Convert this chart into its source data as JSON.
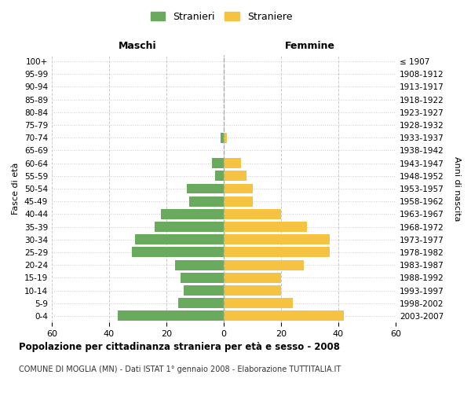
{
  "age_groups": [
    "0-4",
    "5-9",
    "10-14",
    "15-19",
    "20-24",
    "25-29",
    "30-34",
    "35-39",
    "40-44",
    "45-49",
    "50-54",
    "55-59",
    "60-64",
    "65-69",
    "70-74",
    "75-79",
    "80-84",
    "85-89",
    "90-94",
    "95-99",
    "100+"
  ],
  "birth_years": [
    "2003-2007",
    "1998-2002",
    "1993-1997",
    "1988-1992",
    "1983-1987",
    "1978-1982",
    "1973-1977",
    "1968-1972",
    "1963-1967",
    "1958-1962",
    "1953-1957",
    "1948-1952",
    "1943-1947",
    "1938-1942",
    "1933-1937",
    "1928-1932",
    "1923-1927",
    "1918-1922",
    "1913-1917",
    "1908-1912",
    "≤ 1907"
  ],
  "males": [
    37,
    16,
    14,
    15,
    17,
    32,
    31,
    24,
    22,
    12,
    13,
    3,
    4,
    0,
    1,
    0,
    0,
    0,
    0,
    0,
    0
  ],
  "females": [
    42,
    24,
    20,
    20,
    28,
    37,
    37,
    29,
    20,
    10,
    10,
    8,
    6,
    0,
    1,
    0,
    0,
    0,
    0,
    0,
    0
  ],
  "male_color": "#6aaa5e",
  "female_color": "#f5c242",
  "title": "Popolazione per cittadinanza straniera per età e sesso - 2008",
  "subtitle": "COMUNE DI MOGLIA (MN) - Dati ISTAT 1° gennaio 2008 - Elaborazione TUTTITALIA.IT",
  "legend_male": "Stranieri",
  "legend_female": "Straniere",
  "xlabel_left": "Maschi",
  "xlabel_right": "Femmine",
  "ylabel_left": "Fasce di età",
  "ylabel_right": "Anni di nascita",
  "xlim": 60,
  "background_color": "#ffffff",
  "grid_color": "#cccccc"
}
